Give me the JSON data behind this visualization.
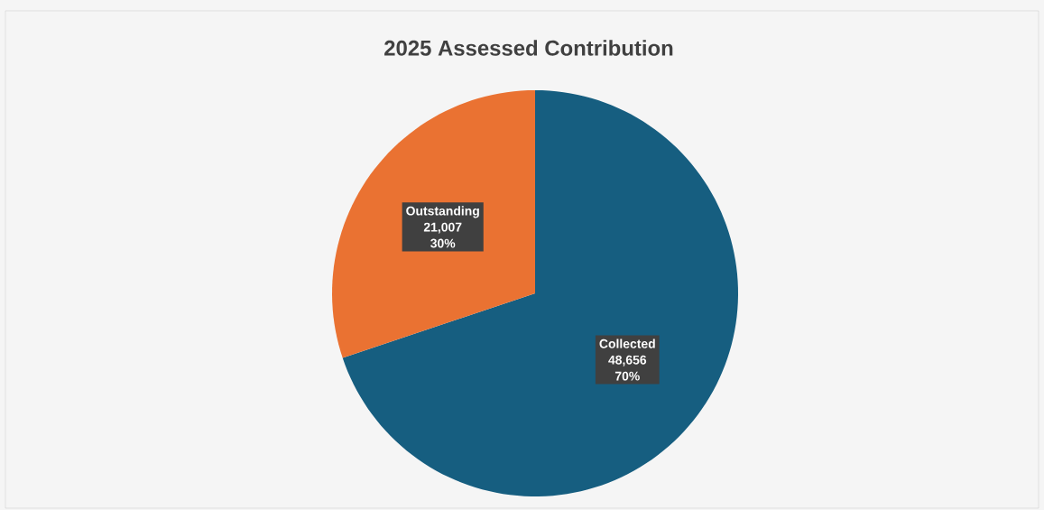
{
  "chart_data": {
    "type": "pie",
    "title": "2025 Assessed Contribution",
    "categories": [
      "Collected",
      "Outstanding"
    ],
    "values": [
      48656,
      21007
    ],
    "colors": [
      "#165e80",
      "#ea7232"
    ],
    "value_labels": [
      "48,656",
      "21,007"
    ],
    "annotations": [
      {
        "text": "70%",
        "x": "Collected"
      },
      {
        "text": "30%",
        "x": "Outstanding"
      }
    ]
  }
}
